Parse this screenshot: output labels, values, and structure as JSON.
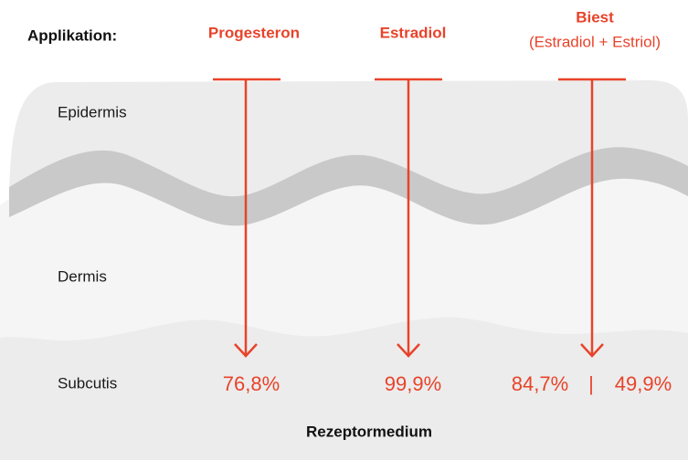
{
  "header": {
    "label": "Applikation:"
  },
  "columns": [
    {
      "name": "Progesteron",
      "result": "76,8%"
    },
    {
      "name": "Estradiol",
      "result": "99,9%"
    },
    {
      "name": "Biest",
      "subtitle": "(Estradiol + Estriol)",
      "result": "84,7%",
      "separator": "|",
      "result2": "49,9%"
    }
  ],
  "layers": [
    "Epidermis",
    "Dermis",
    "Subcutis"
  ],
  "footer": "Rezeptormedium"
}
